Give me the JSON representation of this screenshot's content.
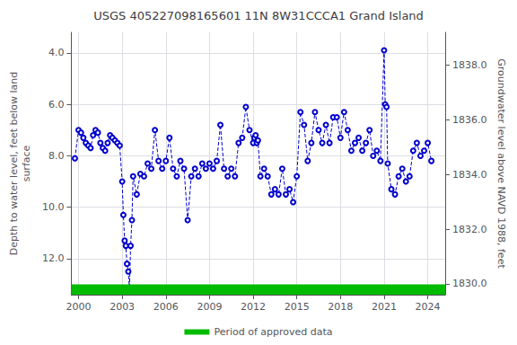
{
  "chart_data": {
    "type": "line",
    "title": "USGS 405227098165601 11N 8W31CCCA1 Grand Island",
    "ylabel": "Depth to water level, feet below land\nsurface",
    "y2label": "Groundwater level above NAVD 1988, feet",
    "x": [
      1999.75,
      2000.0,
      2000.17,
      2000.33,
      2000.5,
      2000.67,
      2000.83,
      2001.0,
      2001.17,
      2001.33,
      2001.5,
      2001.67,
      2001.83,
      2002.0,
      2002.17,
      2002.33,
      2002.5,
      2002.67,
      2002.83,
      2003.0,
      2003.08,
      2003.17,
      2003.25,
      2003.33,
      2003.42,
      2003.5,
      2003.58,
      2003.67,
      2003.75,
      2004.0,
      2004.25,
      2004.5,
      2004.75,
      2005.0,
      2005.25,
      2005.5,
      2005.75,
      2006.0,
      2006.25,
      2006.5,
      2006.75,
      2007.0,
      2007.25,
      2007.5,
      2007.75,
      2008.0,
      2008.25,
      2008.5,
      2008.75,
      2009.0,
      2009.25,
      2009.5,
      2009.75,
      2010.0,
      2010.25,
      2010.5,
      2010.75,
      2011.0,
      2011.25,
      2011.5,
      2011.75,
      2012.0,
      2012.08,
      2012.17,
      2012.25,
      2012.33,
      2012.5,
      2012.75,
      2013.0,
      2013.25,
      2013.5,
      2013.75,
      2014.0,
      2014.25,
      2014.5,
      2014.75,
      2015.0,
      2015.25,
      2015.5,
      2015.75,
      2016.0,
      2016.25,
      2016.5,
      2016.75,
      2017.0,
      2017.25,
      2017.5,
      2017.75,
      2018.0,
      2018.25,
      2018.5,
      2018.75,
      2019.0,
      2019.25,
      2019.5,
      2019.75,
      2020.0,
      2020.25,
      2020.5,
      2020.75,
      2021.0,
      2021.08,
      2021.17,
      2021.25,
      2021.5,
      2021.75,
      2022.0,
      2022.25,
      2022.5,
      2022.75,
      2023.0,
      2023.25,
      2023.5,
      2023.75,
      2024.0,
      2024.25
    ],
    "series": [
      {
        "color": "#0000cc",
        "marker": "circle",
        "line_style": "dashed",
        "values": [
          8.1,
          7.0,
          7.1,
          7.3,
          7.5,
          7.6,
          7.7,
          7.2,
          7.0,
          7.1,
          7.5,
          7.7,
          7.8,
          7.5,
          7.2,
          7.3,
          7.4,
          7.5,
          7.6,
          9.0,
          10.3,
          11.3,
          11.5,
          12.2,
          12.5,
          13.2,
          11.5,
          10.5,
          8.8,
          9.5,
          8.7,
          8.8,
          8.3,
          8.5,
          7.0,
          8.2,
          8.5,
          8.2,
          7.3,
          8.5,
          8.8,
          8.2,
          8.5,
          10.5,
          8.8,
          8.5,
          8.8,
          8.3,
          8.5,
          8.3,
          8.5,
          8.2,
          6.8,
          8.5,
          8.8,
          8.5,
          8.8,
          7.5,
          7.3,
          6.1,
          7.0,
          7.5,
          7.3,
          7.2,
          7.5,
          7.4,
          8.8,
          8.5,
          8.8,
          9.5,
          9.3,
          9.5,
          8.5,
          9.5,
          9.3,
          9.8,
          8.8,
          6.3,
          6.8,
          8.2,
          7.5,
          6.3,
          7.0,
          7.5,
          6.8,
          7.5,
          6.5,
          6.5,
          7.3,
          6.3,
          7.0,
          7.8,
          7.5,
          7.3,
          7.8,
          7.5,
          7.0,
          8.0,
          7.8,
          8.2,
          3.9,
          6.0,
          6.1,
          8.3,
          9.3,
          9.5,
          8.8,
          8.5,
          9.0,
          8.8,
          7.8,
          7.5,
          8.0,
          7.8,
          7.5,
          8.2
        ]
      },
      {
        "name": "Period of approved data",
        "type": "band",
        "color": "#00bb00",
        "x": [
          1999.5,
          2025.2
        ],
        "y_range": [
          13.0,
          13.4
        ]
      }
    ],
    "xlim": [
      1999.5,
      2025.2
    ],
    "xticks": [
      2000,
      2003,
      2006,
      2009,
      2012,
      2015,
      2018,
      2021,
      2024
    ],
    "ylim": [
      13.4,
      3.2
    ],
    "yticks": [
      {
        "value": 4.0,
        "label": "4.0"
      },
      {
        "value": 6.0,
        "label": "6.0"
      },
      {
        "value": 8.0,
        "label": "8.0"
      },
      {
        "value": 10.0,
        "label": "10.0"
      },
      {
        "value": 12.0,
        "label": "12.0"
      }
    ],
    "y2lim": [
      1829.6,
      1839.2
    ],
    "y2ticks": [
      {
        "value": 1830.0,
        "label": "1830.0"
      },
      {
        "value": 1832.0,
        "label": "1832.0"
      },
      {
        "value": 1834.0,
        "label": "1834.0"
      },
      {
        "value": 1836.0,
        "label": "1836.0"
      },
      {
        "value": 1838.0,
        "label": "1838.0"
      }
    ],
    "grid": true,
    "legend": "bottom"
  }
}
